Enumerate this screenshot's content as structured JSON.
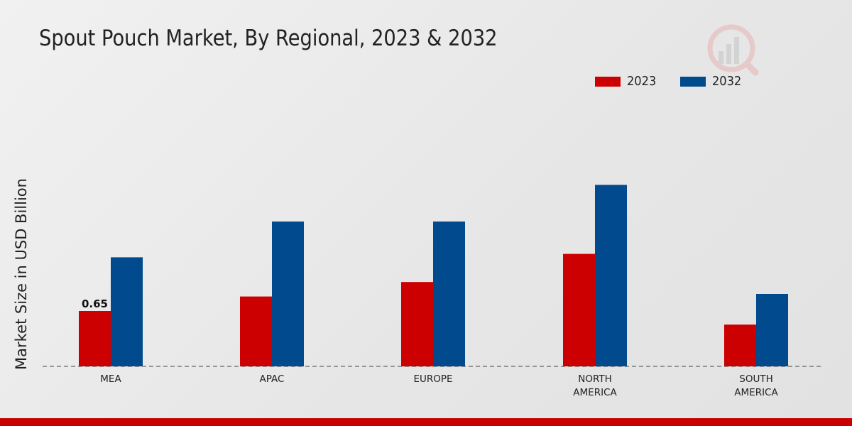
{
  "chart_data": {
    "type": "bar",
    "title": "Spout Pouch Market, By Regional, 2023 & 2032",
    "xlabel": "",
    "ylabel": "Market Size in USD Billion",
    "categories": [
      "MEA",
      "APAC",
      "EUROPE",
      "NORTH AMERICA",
      "SOUTH AMERICA"
    ],
    "category_lines": [
      [
        "MEA"
      ],
      [
        "APAC"
      ],
      [
        "EUROPE"
      ],
      [
        "NORTH",
        "AMERICA"
      ],
      [
        "SOUTH",
        "AMERICA"
      ]
    ],
    "series": [
      {
        "name": "2023",
        "color": "#cc0000",
        "values": [
          0.65,
          0.82,
          0.99,
          1.32,
          0.49
        ]
      },
      {
        "name": "2032",
        "color": "#004a8d",
        "values": [
          1.28,
          1.7,
          1.7,
          2.13,
          0.85
        ]
      }
    ],
    "data_labels": [
      {
        "series": 0,
        "index": 0,
        "text": "0.65"
      }
    ],
    "ylim": [
      0,
      3.25
    ],
    "grid": false,
    "legend_position": "top-right"
  }
}
